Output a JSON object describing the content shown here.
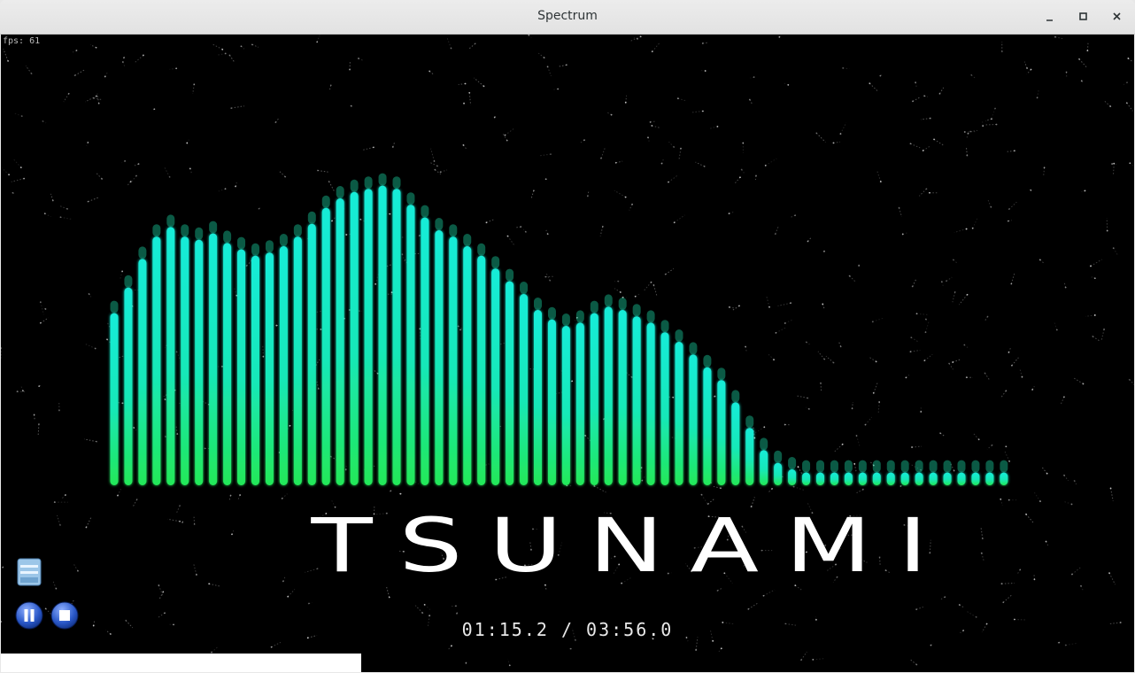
{
  "window": {
    "title": "Spectrum"
  },
  "overlay": {
    "fps": "fps: 61"
  },
  "track": {
    "title": "TSUNAMI",
    "time": "01:15.2 / 03:56.0",
    "progress": 0.318
  },
  "controls": {
    "open": "open-file-icon",
    "pause": "pause-icon",
    "stop": "stop-icon"
  },
  "colors": {
    "bar_top": "#18e8e0",
    "bar_bottom": "#1de850",
    "accent": "#2a58c8"
  },
  "chart_data": {
    "type": "bar",
    "bar_count": 64,
    "values": [
      0.54,
      0.62,
      0.71,
      0.78,
      0.81,
      0.78,
      0.77,
      0.79,
      0.76,
      0.74,
      0.72,
      0.73,
      0.75,
      0.78,
      0.82,
      0.87,
      0.9,
      0.92,
      0.93,
      0.94,
      0.93,
      0.88,
      0.84,
      0.8,
      0.78,
      0.75,
      0.72,
      0.68,
      0.64,
      0.6,
      0.55,
      0.52,
      0.5,
      0.51,
      0.54,
      0.56,
      0.55,
      0.53,
      0.51,
      0.48,
      0.45,
      0.41,
      0.37,
      0.33,
      0.26,
      0.18,
      0.11,
      0.07,
      0.05,
      0.04,
      0.04,
      0.04,
      0.04,
      0.04,
      0.04,
      0.04,
      0.04,
      0.04,
      0.04,
      0.04,
      0.04,
      0.04,
      0.04,
      0.04
    ]
  }
}
